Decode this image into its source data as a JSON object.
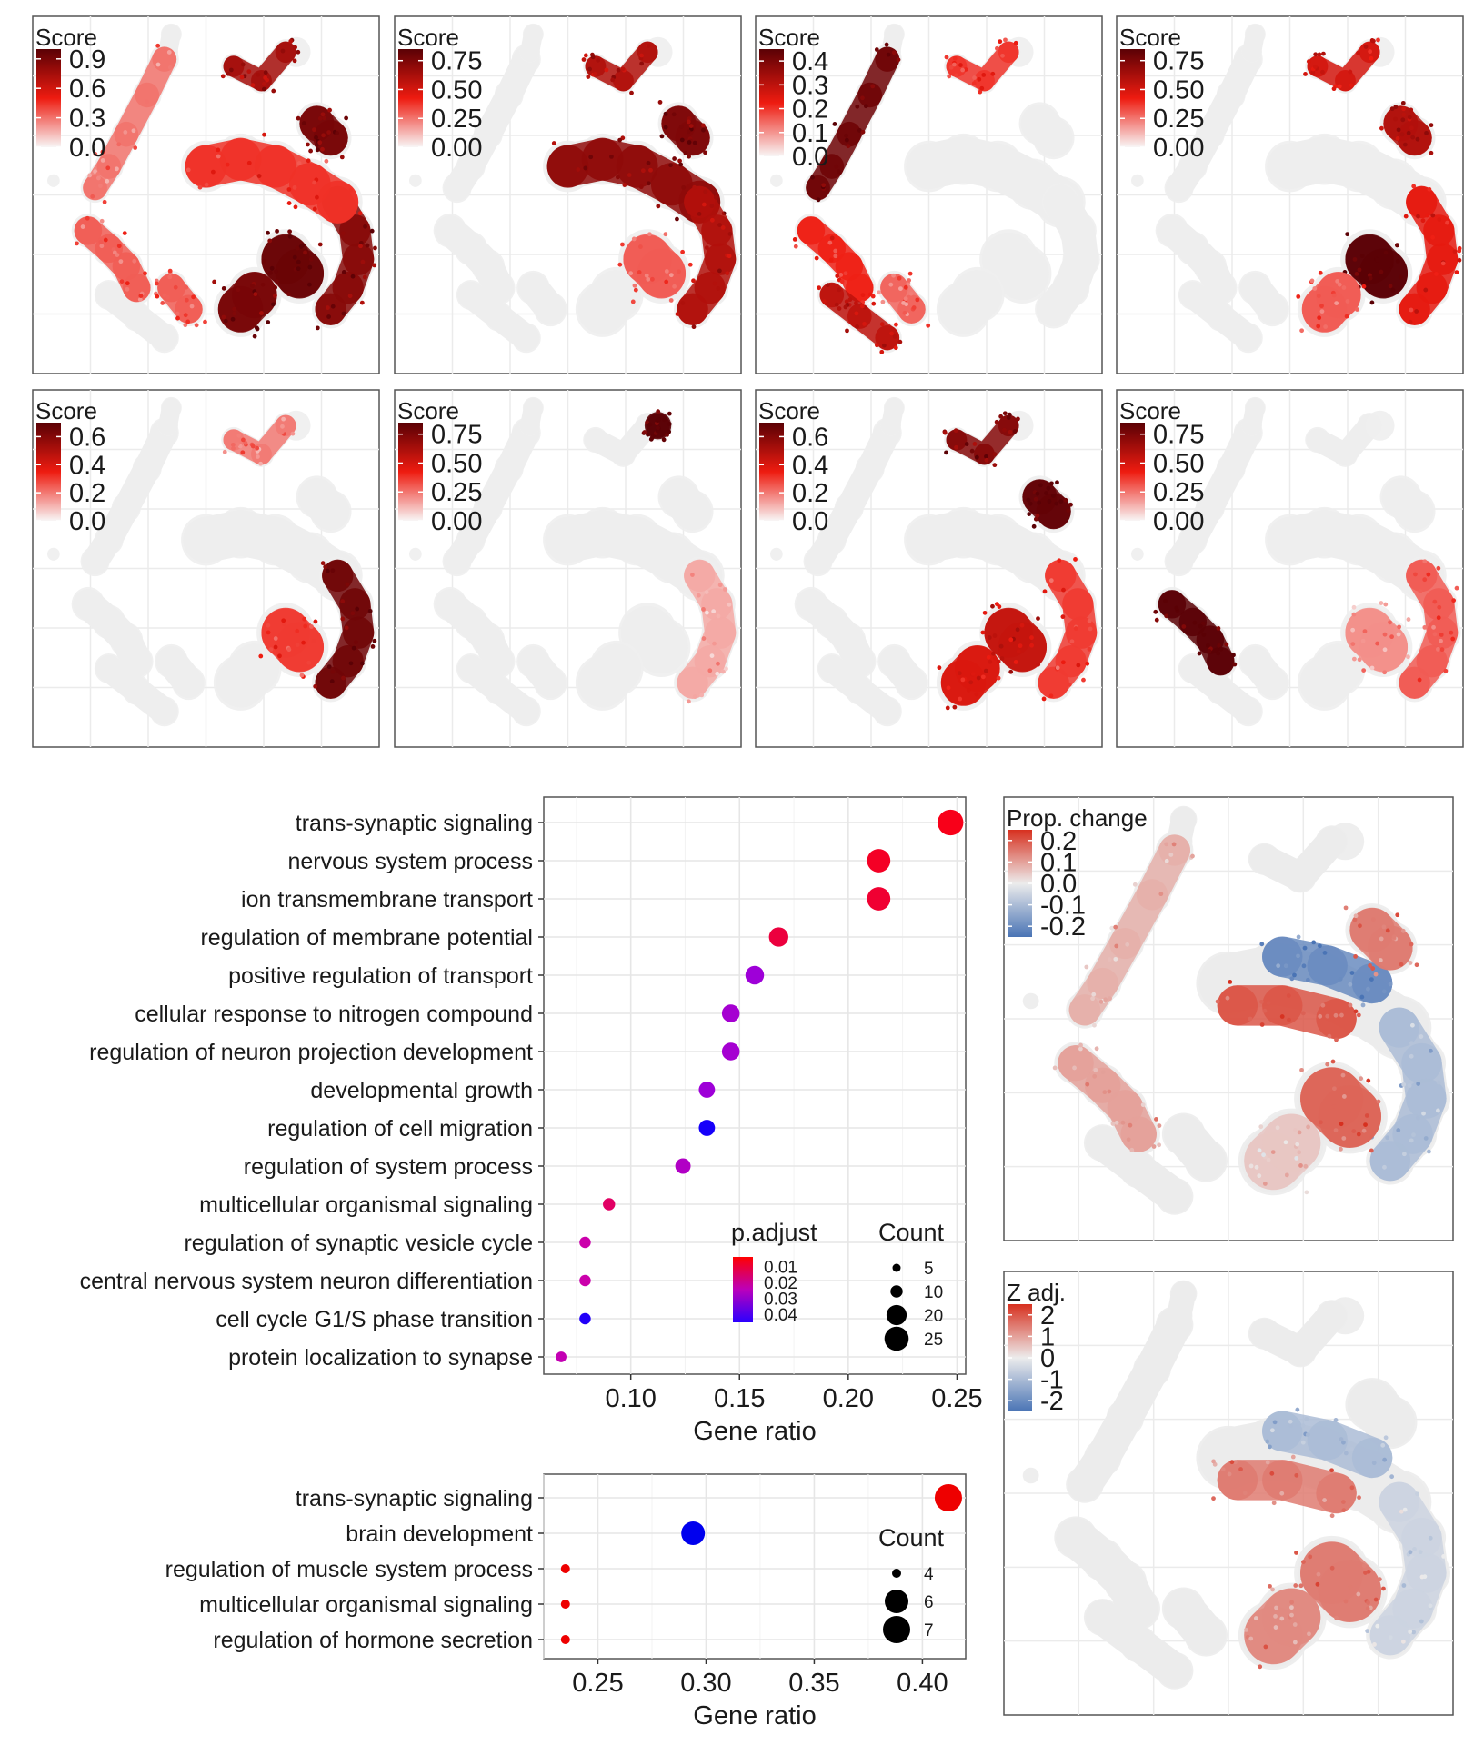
{
  "chart_data": [
    {
      "type": "scatter",
      "panel": "umap-1",
      "color_title": "Score",
      "color_ticks": [
        "0.9",
        "0.6",
        "0.3",
        "0.0"
      ],
      "color_range": [
        0.0,
        1.0
      ],
      "palette": [
        "#f8f6f6",
        "#ee1b10",
        "#5b0105"
      ],
      "hotspots": [
        {
          "region": "right-loop",
          "value": 0.85
        },
        {
          "region": "bottom-blob-right",
          "value": 0.95
        },
        {
          "region": "bottom-blob-left",
          "value": 0.9
        },
        {
          "region": "upper-right-cluster",
          "value": 0.9
        },
        {
          "region": "center-band",
          "value": 0.45
        },
        {
          "region": "small-top",
          "value": 0.75
        },
        {
          "region": "left-lower",
          "value": 0.35
        },
        {
          "region": "left-arm",
          "value": 0.3
        },
        {
          "region": "bottom-mid",
          "value": 0.35
        }
      ]
    },
    {
      "type": "scatter",
      "panel": "umap-2",
      "color_title": "Score",
      "color_ticks": [
        "0.75",
        "0.50",
        "0.25",
        "0.00"
      ],
      "color_range": [
        0.0,
        0.85
      ],
      "palette": [
        "#f8f6f6",
        "#ee1b10",
        "#5b0105"
      ],
      "hotspots": [
        {
          "region": "center-band",
          "value": 0.7
        },
        {
          "region": "right-loop",
          "value": 0.6
        },
        {
          "region": "upper-right-cluster",
          "value": 0.75
        },
        {
          "region": "small-top",
          "value": 0.6
        },
        {
          "region": "bottom-blob-right",
          "value": 0.3
        }
      ]
    },
    {
      "type": "scatter",
      "panel": "umap-3",
      "color_title": "Score",
      "color_ticks": [
        "0.4",
        "0.3",
        "0.2",
        "0.1",
        "0.0"
      ],
      "color_range": [
        0.0,
        0.45
      ],
      "palette": [
        "#f8f6f6",
        "#ee1b10",
        "#5b0105"
      ],
      "hotspots": [
        {
          "region": "left-arm",
          "value": 0.42
        },
        {
          "region": "left-lower",
          "value": 0.22
        },
        {
          "region": "left-bottom",
          "value": 0.3
        },
        {
          "region": "bottom-mid",
          "value": 0.15
        },
        {
          "region": "small-top",
          "value": 0.2
        }
      ]
    },
    {
      "type": "scatter",
      "panel": "umap-4",
      "color_title": "Score",
      "color_ticks": [
        "0.75",
        "0.50",
        "0.25",
        "0.00"
      ],
      "color_range": [
        0.0,
        0.85
      ],
      "palette": [
        "#f8f6f6",
        "#ee1b10",
        "#5b0105"
      ],
      "hotspots": [
        {
          "region": "bottom-blob-right",
          "value": 0.85
        },
        {
          "region": "right-loop",
          "value": 0.45
        },
        {
          "region": "upper-right-cluster",
          "value": 0.6
        },
        {
          "region": "small-top",
          "value": 0.5
        },
        {
          "region": "bottom-blob-left",
          "value": 0.3
        }
      ]
    },
    {
      "type": "scatter",
      "panel": "umap-5",
      "color_title": "Score",
      "color_ticks": [
        "0.6",
        "0.4",
        "0.2",
        "0.0"
      ],
      "color_range": [
        0.0,
        0.7
      ],
      "palette": [
        "#f8f6f6",
        "#ee1b10",
        "#5b0105"
      ],
      "hotspots": [
        {
          "region": "right-loop",
          "value": 0.65
        },
        {
          "region": "bottom-blob-right",
          "value": 0.3
        },
        {
          "region": "small-top",
          "value": 0.2
        }
      ]
    },
    {
      "type": "scatter",
      "panel": "umap-6",
      "color_title": "Score",
      "color_ticks": [
        "0.75",
        "0.50",
        "0.25",
        "0.00"
      ],
      "color_range": [
        0.0,
        0.85
      ],
      "palette": [
        "#f8f6f6",
        "#ee1b10",
        "#5b0105"
      ],
      "hotspots": [
        {
          "region": "small-top-dark",
          "value": 0.85
        },
        {
          "region": "right-loop",
          "value": 0.15
        }
      ]
    },
    {
      "type": "scatter",
      "panel": "umap-7",
      "color_title": "Score",
      "color_ticks": [
        "0.6",
        "0.4",
        "0.2",
        "0.0"
      ],
      "color_range": [
        0.0,
        0.7
      ],
      "palette": [
        "#f8f6f6",
        "#ee1b10",
        "#5b0105"
      ],
      "hotspots": [
        {
          "region": "upper-right-cluster",
          "value": 0.68
        },
        {
          "region": "small-top",
          "value": 0.6
        },
        {
          "region": "bottom-blob-right",
          "value": 0.45
        },
        {
          "region": "bottom-blob-left",
          "value": 0.4
        },
        {
          "region": "right-loop",
          "value": 0.3
        }
      ]
    },
    {
      "type": "scatter",
      "panel": "umap-8",
      "color_title": "Score",
      "color_ticks": [
        "0.75",
        "0.50",
        "0.25",
        "0.00"
      ],
      "color_range": [
        0.0,
        0.85
      ],
      "palette": [
        "#f8f6f6",
        "#ee1b10",
        "#5b0105"
      ],
      "hotspots": [
        {
          "region": "left-lower",
          "value": 0.85
        },
        {
          "region": "right-loop",
          "value": 0.3
        },
        {
          "region": "bottom-blob-right",
          "value": 0.2
        }
      ]
    },
    {
      "type": "scatter",
      "panel": "enrichment-1",
      "xlabel": "Gene ratio",
      "xlim": [
        0.06,
        0.254
      ],
      "x_ticks": [
        0.1,
        0.15,
        0.2,
        0.25
      ],
      "x_tick_labels": [
        "0.10",
        "0.15",
        "0.20",
        "0.25"
      ],
      "color_title": "p.adjust",
      "color_ticks": [
        "0.01",
        "0.02",
        "0.03",
        "0.04"
      ],
      "color_range": [
        0.004,
        0.045
      ],
      "size_title": "Count",
      "size_ticks": [
        "5",
        "10",
        "20",
        "25"
      ],
      "size_values": [
        5,
        10,
        20,
        25
      ],
      "categories": [
        "trans-synaptic signaling",
        "nervous system process",
        "ion transmembrane transport",
        "regulation of membrane potential",
        "positive regulation of transport",
        "cellular response to nitrogen compound",
        "regulation of neuron projection development",
        "developmental growth",
        "regulation of cell migration",
        "regulation of system process",
        "multicellular organismal signaling",
        "regulation of synaptic vesicle cycle",
        "central nervous system neuron differentiation",
        "cell cycle G1/S phase transition",
        "protein localization to synapse"
      ],
      "points": [
        {
          "x": 0.247,
          "p": 0.006,
          "count": 27
        },
        {
          "x": 0.214,
          "p": 0.007,
          "count": 24
        },
        {
          "x": 0.214,
          "p": 0.008,
          "count": 24
        },
        {
          "x": 0.168,
          "p": 0.009,
          "count": 19
        },
        {
          "x": 0.157,
          "p": 0.03,
          "count": 18
        },
        {
          "x": 0.146,
          "p": 0.028,
          "count": 17
        },
        {
          "x": 0.146,
          "p": 0.028,
          "count": 17
        },
        {
          "x": 0.135,
          "p": 0.03,
          "count": 15
        },
        {
          "x": 0.135,
          "p": 0.043,
          "count": 15
        },
        {
          "x": 0.124,
          "p": 0.025,
          "count": 14
        },
        {
          "x": 0.09,
          "p": 0.012,
          "count": 10
        },
        {
          "x": 0.079,
          "p": 0.018,
          "count": 9
        },
        {
          "x": 0.079,
          "p": 0.018,
          "count": 9
        },
        {
          "x": 0.079,
          "p": 0.042,
          "count": 9
        },
        {
          "x": 0.068,
          "p": 0.02,
          "count": 8
        }
      ]
    },
    {
      "type": "scatter",
      "panel": "enrichment-2",
      "xlabel": "Gene ratio",
      "xlim": [
        0.225,
        0.42
      ],
      "x_ticks": [
        0.25,
        0.3,
        0.35,
        0.4
      ],
      "x_tick_labels": [
        "0.25",
        "0.30",
        "0.35",
        "0.40"
      ],
      "size_title": "Count",
      "size_ticks": [
        "4",
        "6",
        "7"
      ],
      "size_values": [
        4,
        6,
        7
      ],
      "categories": [
        "trans-synaptic signaling",
        "brain development",
        "regulation of muscle system process",
        "multicellular organismal signaling",
        "regulation of hormone secretion"
      ],
      "points": [
        {
          "x": 0.412,
          "count": 7,
          "color": "#ee0000"
        },
        {
          "x": 0.294,
          "count": 5,
          "color": "#0000ee"
        },
        {
          "x": 0.235,
          "count": 4,
          "color": "#ee0000"
        },
        {
          "x": 0.235,
          "count": 4,
          "color": "#ee0000"
        },
        {
          "x": 0.235,
          "count": 4,
          "color": "#ee0000"
        }
      ]
    },
    {
      "type": "scatter",
      "panel": "umap-prop-change",
      "color_title": "Prop. change",
      "color_ticks": [
        "0.2",
        "0.1",
        "0.0",
        "-0.1",
        "-0.2"
      ],
      "color_range": [
        -0.25,
        0.25
      ],
      "palette": [
        "#4a74b5",
        "#ececec",
        "#d7301f"
      ],
      "hotspots": [
        {
          "region": "center-band-top",
          "value": -0.2
        },
        {
          "region": "center-band-bottom",
          "value": 0.2
        },
        {
          "region": "right-loop",
          "value": -0.1
        },
        {
          "region": "bottom-blob-right",
          "value": 0.18
        },
        {
          "region": "bottom-blob-left",
          "value": 0.05
        },
        {
          "region": "left-arm",
          "value": 0.08
        },
        {
          "region": "left-lower",
          "value": 0.1
        },
        {
          "region": "upper-right-cluster",
          "value": 0.15
        }
      ]
    },
    {
      "type": "scatter",
      "panel": "umap-z-adj",
      "color_title": "Z adj.",
      "color_ticks": [
        "2",
        "1",
        "0",
        "-1",
        "-2"
      ],
      "color_range": [
        -2.5,
        2.5
      ],
      "palette": [
        "#4a74b5",
        "#ececec",
        "#d7301f"
      ],
      "hotspots": [
        {
          "region": "center-band-top",
          "value": -1.0
        },
        {
          "region": "center-band-bottom",
          "value": 1.5
        },
        {
          "region": "bottom-blob-right",
          "value": 1.5
        },
        {
          "region": "bottom-blob-left",
          "value": 1.3
        },
        {
          "region": "right-loop",
          "value": -0.5
        }
      ]
    }
  ]
}
